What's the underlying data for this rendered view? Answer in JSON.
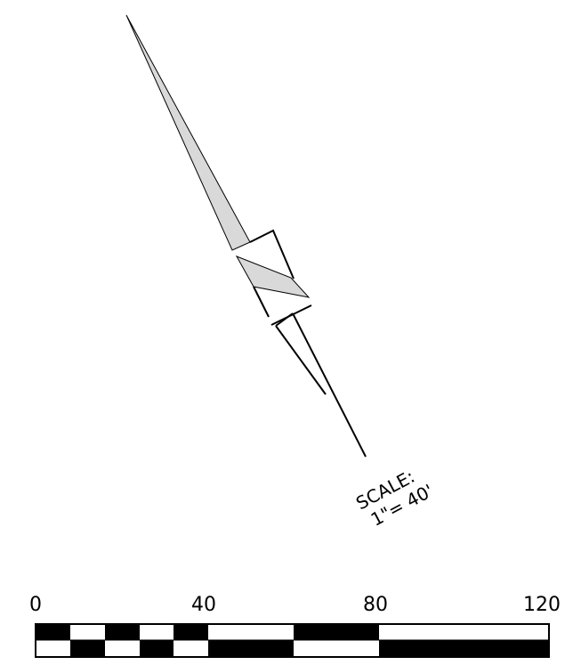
{
  "north_arrow": {
    "fill_color": "#d9d9d9",
    "stroke_color": "#000000"
  },
  "scale_note": {
    "line1": "SCALE:",
    "line2": "1\"= 40'"
  },
  "scale_bar": {
    "tick_labels": [
      "0",
      "40",
      "80",
      "120"
    ],
    "colors": {
      "dark": "#000000",
      "light": "#ffffff"
    }
  }
}
